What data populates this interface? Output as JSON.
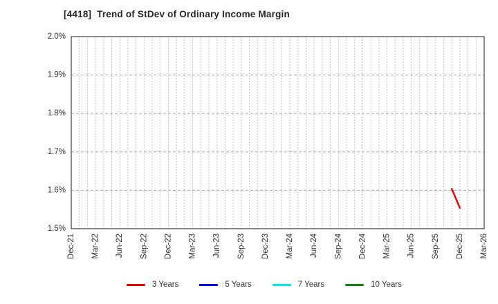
{
  "title": "[4418]  Trend of StDev of Ordinary Income Margin",
  "colors": {
    "background": "#ffffff",
    "border": "#404040",
    "minor_grid": "#c6c6c6",
    "major_grid": "#a8a8a8",
    "tick_text": "#333333",
    "title_text": "#262626"
  },
  "chart_data": {
    "type": "line",
    "title": "[4418]  Trend of StDev of Ordinary Income Margin",
    "xlabel": "",
    "ylabel": "",
    "ylim": [
      1.5,
      2.0
    ],
    "y_ticks": [
      {
        "value": 2.0,
        "label": "2.0%"
      },
      {
        "value": 1.9,
        "label": "1.9%"
      },
      {
        "value": 1.8,
        "label": "1.8%"
      },
      {
        "value": 1.7,
        "label": "1.7%"
      },
      {
        "value": 1.6,
        "label": "1.6%"
      },
      {
        "value": 1.5,
        "label": "1.5%"
      }
    ],
    "x_tick_labels": [
      "Dec-21",
      "Mar-22",
      "Jun-22",
      "Sep-22",
      "Dec-22",
      "Mar-23",
      "Jun-23",
      "Sep-23",
      "Dec-23",
      "Mar-24",
      "Jun-24",
      "Sep-24",
      "Dec-24",
      "Mar-25",
      "Jun-25",
      "Sep-25",
      "Dec-25",
      "Mar-26"
    ],
    "months_span": 51,
    "grid": {
      "vertical": "monthly-dotted",
      "horizontal": "0.1%-dashed"
    },
    "legend_position": "bottom",
    "series": [
      {
        "name": "3 Years",
        "color": "#e80000",
        "points": [
          {
            "label": "Nov-25",
            "month_index": 47,
            "value": 1.604
          },
          {
            "label": "Dec-25",
            "month_index": 48,
            "value": 1.554
          }
        ]
      },
      {
        "name": "5 Years",
        "color": "#0000e8",
        "points": []
      },
      {
        "name": "7 Years",
        "color": "#00e5ee",
        "points": []
      },
      {
        "name": "10 Years",
        "color": "#0f8a10",
        "points": []
      }
    ]
  }
}
